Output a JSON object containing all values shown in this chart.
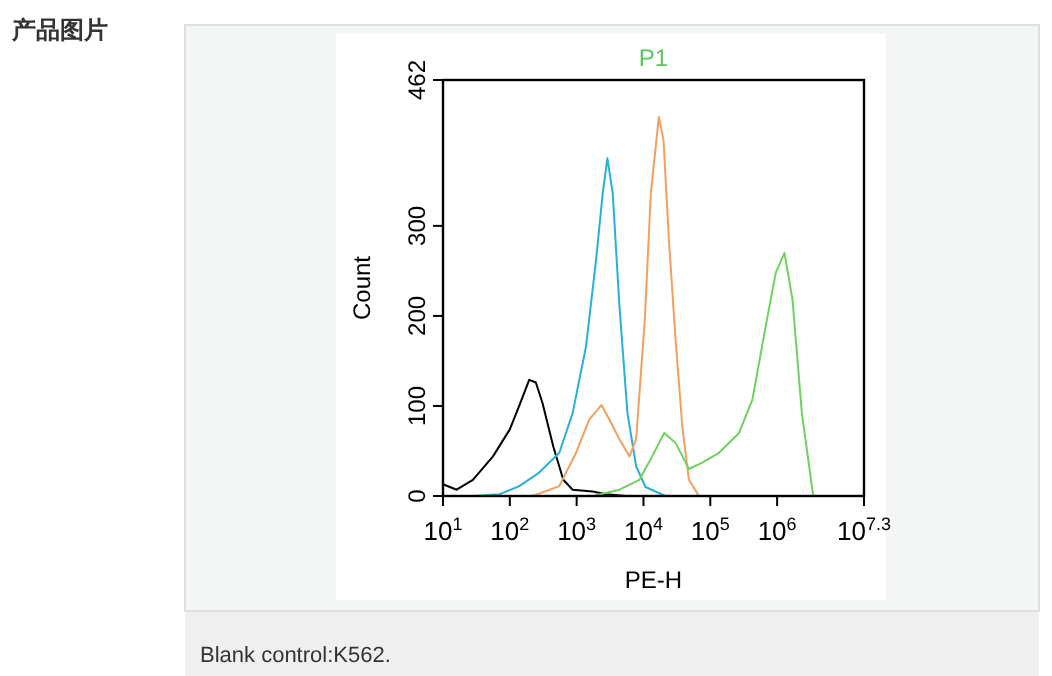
{
  "chart_data": {
    "type": "line",
    "title": "P1",
    "xlabel": "PE-H",
    "ylabel": "Count",
    "log": "x",
    "grid": false,
    "marker": "none",
    "line_style": "solid",
    "xlim": [
      10,
      19952623
    ],
    "xticks": [
      {
        "value": 10,
        "label": "10$^{1}$"
      },
      {
        "value": 100,
        "label": "10$^{2}$"
      },
      {
        "value": 1000,
        "label": "10$^{3}$"
      },
      {
        "value": 10000,
        "label": "10$^{4}$"
      },
      {
        "value": 100000,
        "label": "10$^{5}$"
      },
      {
        "value": 1000000,
        "label": "10$^{6}$"
      },
      {
        "value": 19952623,
        "label": "10$^{7.3}$"
      }
    ],
    "ylim": [
      0,
      462
    ],
    "yticks": [
      0,
      100,
      200,
      300,
      462
    ],
    "annotations": [
      "产品图片",
      "Blank control:K562."
    ],
    "series": [
      {
        "color": "#000000",
        "x": [
          10,
          16,
          28,
          56,
          100,
          138,
          195,
          245,
          309,
          447,
          631,
          871,
          1738,
          2754,
          5495
        ],
        "values": [
          13,
          7,
          18,
          44,
          74,
          100,
          129,
          126,
          103,
          55,
          18,
          7,
          5,
          2,
          0
        ]
      },
      {
        "color": "#2ab0d8",
        "x": [
          28,
          71,
          138,
          275,
          550,
          871,
          1380,
          1950,
          2455,
          2884,
          3467,
          4365,
          5754,
          7762,
          10715,
          21380
        ],
        "values": [
          0,
          2,
          11,
          26,
          48,
          92,
          166,
          262,
          336,
          375,
          336,
          211,
          92,
          33,
          10,
          0
        ]
      },
      {
        "color": "#f0a060",
        "x": [
          219,
          550,
          977,
          1549,
          2344,
          3090,
          4365,
          6166,
          7762,
          10471,
          12882,
          16982,
          19953,
          23988,
          30200,
          38019,
          47863,
          67608
        ],
        "values": [
          0,
          11,
          48,
          85,
          101,
          85,
          63,
          44,
          63,
          196,
          336,
          421,
          395,
          285,
          174,
          78,
          18,
          0
        ]
      },
      {
        "color": "#70d060",
        "x": [
          1738,
          4365,
          8710,
          13490,
          20417,
          30200,
          47863,
          75858,
          134896,
          269153,
          426580,
          676083,
          954993,
          1288250,
          1698244,
          2344229,
          3467369
        ],
        "values": [
          0,
          7,
          18,
          44,
          70,
          59,
          30,
          37,
          48,
          70,
          107,
          189,
          248,
          270,
          218,
          92,
          0
        ]
      }
    ]
  }
}
